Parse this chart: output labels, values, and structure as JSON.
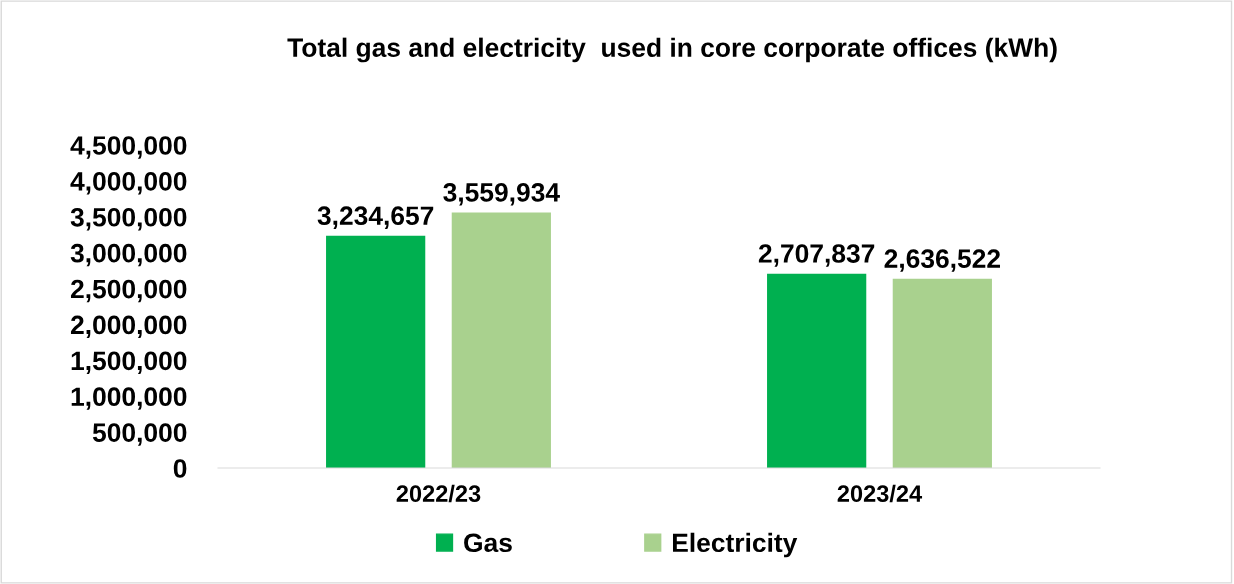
{
  "chart_data": {
    "type": "bar",
    "title": "Total gas and electricity  used in core corporate offices (kWh)",
    "categories": [
      "2022/23",
      "2023/24"
    ],
    "series": [
      {
        "name": "Gas",
        "color": "#00b050",
        "values": [
          3234657,
          2707837
        ],
        "value_labels": [
          "3,234,657",
          "2,707,837"
        ]
      },
      {
        "name": "Electricity",
        "color": "#a9d18e",
        "values": [
          3559934,
          2636522
        ],
        "value_labels": [
          "3,559,934",
          "2,636,522"
        ]
      }
    ],
    "ylim": [
      0,
      4500000
    ],
    "yticks": [
      {
        "value": 0,
        "label": "0"
      },
      {
        "value": 500000,
        "label": "500,000"
      },
      {
        "value": 1000000,
        "label": "1,000,000"
      },
      {
        "value": 1500000,
        "label": "1,500,000"
      },
      {
        "value": 2000000,
        "label": "2,000,000"
      },
      {
        "value": 2500000,
        "label": "2,500,000"
      },
      {
        "value": 3000000,
        "label": "3,000,000"
      },
      {
        "value": 3500000,
        "label": "3,500,000"
      },
      {
        "value": 4000000,
        "label": "4,000,000"
      },
      {
        "value": 4500000,
        "label": "4,500,000"
      }
    ],
    "grid": false,
    "legend": "bottom"
  }
}
